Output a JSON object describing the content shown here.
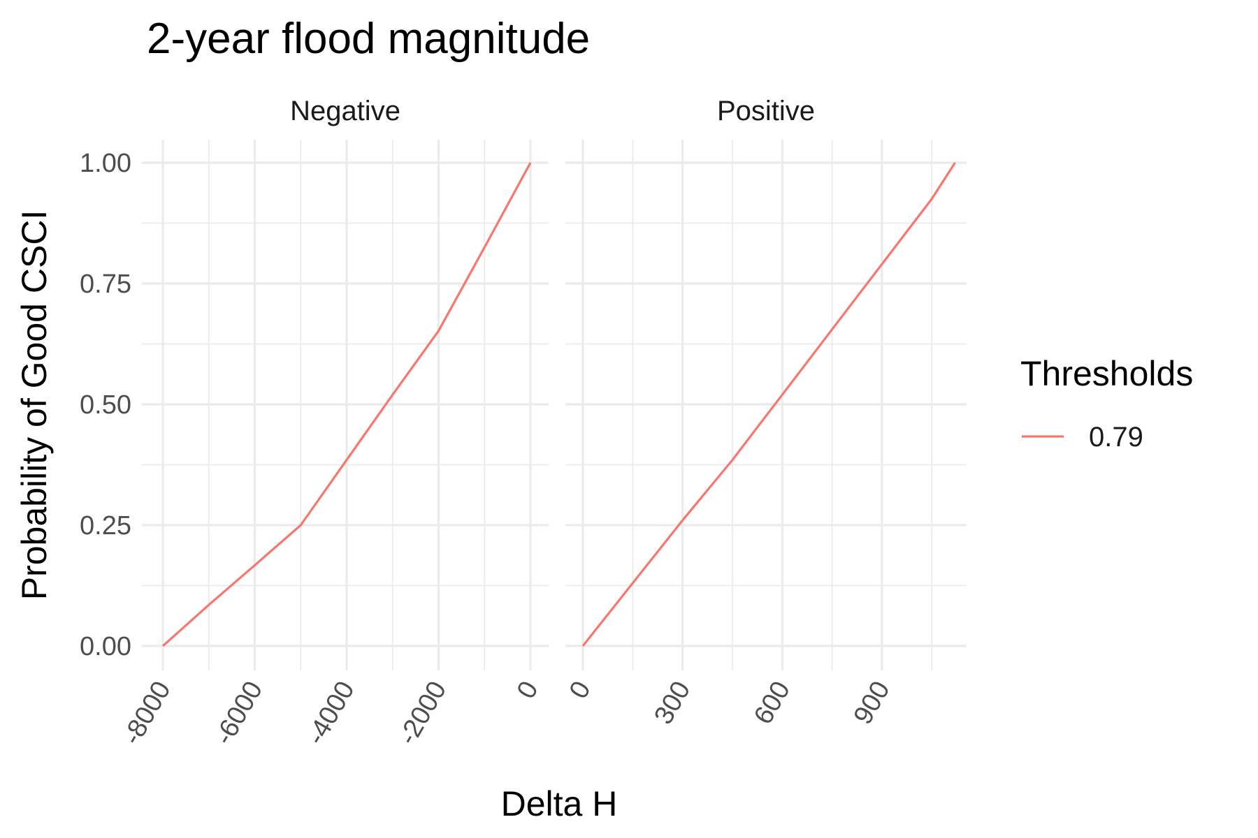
{
  "title": "2-year flood magnitude",
  "xlabel": "Delta H",
  "ylabel": "Probability of Good CSCI",
  "colors": {
    "series": "#f8766d",
    "grid": "#ebebeb"
  },
  "legend": {
    "title": "Thresholds",
    "placement": "right",
    "items": [
      "0.79"
    ]
  },
  "chart_data": {
    "type": "line",
    "title": "2-year flood magnitude",
    "xlabel": "Delta H",
    "ylabel": "Probability of Good CSCI",
    "grid": true,
    "legend_placement": "right",
    "ylim": [
      0,
      1
    ],
    "y_ticks": [
      "0.00",
      "0.25",
      "0.50",
      "0.75",
      "1.00"
    ],
    "facets": [
      {
        "label": "Negative",
        "xlim": [
          -8000,
          0
        ],
        "x_ticks": [
          -8000,
          -6000,
          -4000,
          -2000,
          0
        ],
        "x_tick_labels": [
          "-8000",
          "-6000",
          "-4000",
          "-2000",
          "0"
        ],
        "series": [
          {
            "name": "0.79",
            "x": [
              -8000,
              -7000,
              -6000,
              -5000,
              -4000,
              -3000,
              -2000,
              -1000,
              0
            ],
            "y": [
              0.0,
              0.085,
              0.167,
              0.25,
              0.385,
              0.52,
              0.652,
              0.825,
              1.0
            ]
          }
        ]
      },
      {
        "label": "Positive",
        "xlim": [
          0,
          1100
        ],
        "x_ticks": [
          0,
          300,
          600,
          900
        ],
        "x_tick_labels": [
          "0",
          "300",
          "600",
          "900"
        ],
        "series": [
          {
            "name": "0.79",
            "x": [
              0,
              150,
              300,
              450,
              600,
              750,
              900,
              1050,
              1120
            ],
            "y": [
              0.0,
              0.13,
              0.26,
              0.385,
              0.52,
              0.655,
              0.79,
              0.925,
              1.0
            ]
          }
        ]
      }
    ]
  }
}
